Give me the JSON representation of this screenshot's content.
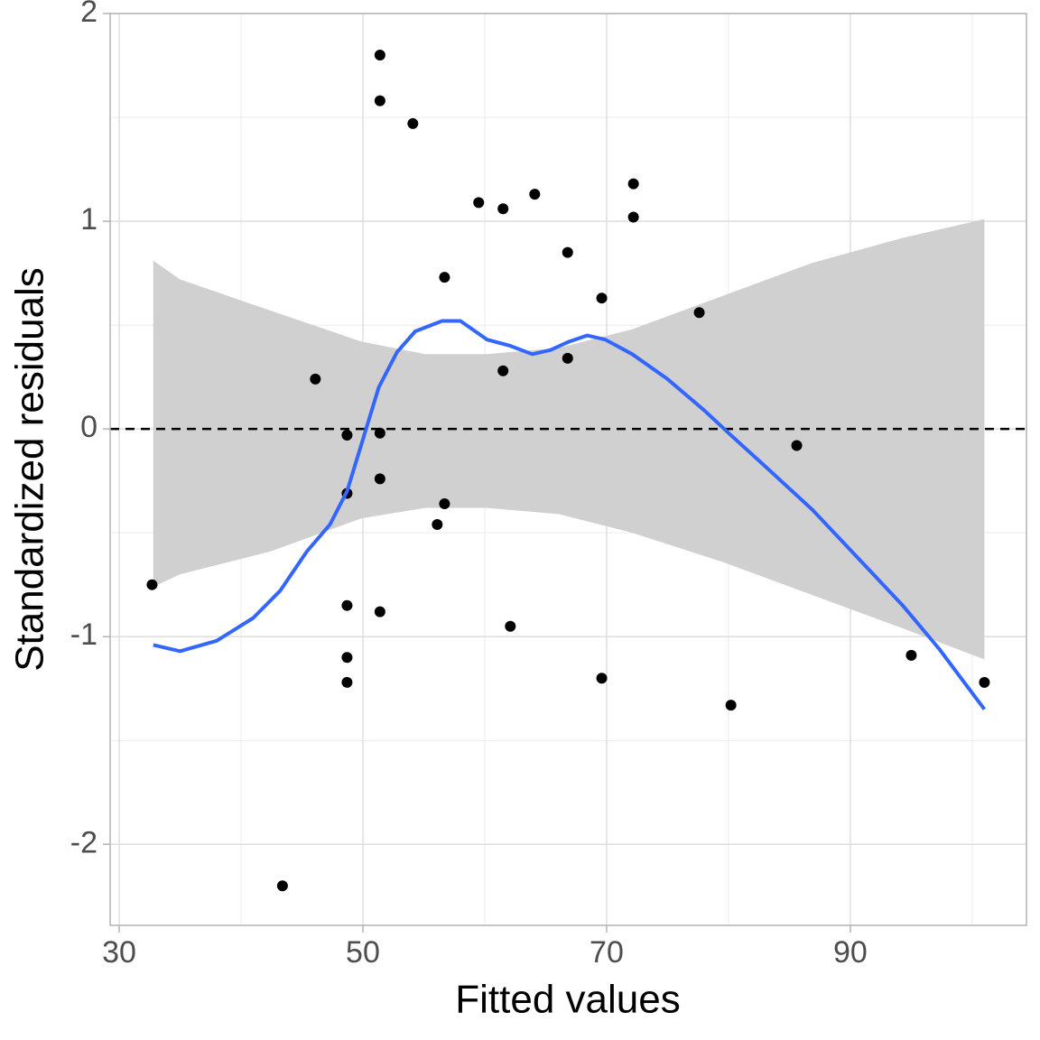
{
  "chart_data": {
    "type": "scatter",
    "xlabel": "Fitted values",
    "ylabel": "Standardized residuals",
    "x": [
      32.7,
      43.4,
      46.1,
      48.7,
      48.7,
      48.7,
      48.7,
      48.7,
      51.4,
      51.4,
      51.4,
      51.4,
      51.4,
      54.1,
      56.1,
      56.7,
      56.7,
      59.5,
      61.5,
      61.5,
      62.1,
      64.1,
      66.8,
      66.8,
      69.6,
      69.6,
      72.2,
      72.2,
      77.6,
      80.2,
      85.6,
      95.0,
      101.0
    ],
    "values": [
      -0.75,
      -2.2,
      0.24,
      -0.03,
      -0.31,
      -0.85,
      -1.1,
      -1.22,
      1.8,
      1.58,
      -0.02,
      -0.24,
      -0.88,
      1.47,
      -0.46,
      0.73,
      -0.36,
      1.09,
      1.06,
      0.28,
      -0.95,
      1.13,
      0.85,
      0.34,
      0.63,
      -1.2,
      1.18,
      1.02,
      0.56,
      -1.33,
      -0.08,
      -1.09,
      -1.22
    ],
    "color": "#000000",
    "smooth": {
      "color": "#3366ff",
      "x": [
        32.8,
        35.0,
        38.0,
        41.0,
        43.2,
        45.4,
        47.3,
        48.7,
        49.9,
        51.3,
        52.8,
        54.3,
        56.5,
        58.0,
        60.2,
        62.1,
        63.9,
        65.4,
        66.9,
        68.4,
        69.9,
        72.1,
        75.0,
        78.0,
        80.2,
        83.2,
        86.9,
        90.6,
        94.3,
        97.3,
        101.0
      ],
      "y": [
        -1.04,
        -1.07,
        -1.02,
        -0.91,
        -0.78,
        -0.59,
        -0.46,
        -0.3,
        -0.07,
        0.2,
        0.37,
        0.47,
        0.52,
        0.52,
        0.43,
        0.4,
        0.36,
        0.38,
        0.42,
        0.45,
        0.43,
        0.36,
        0.24,
        0.09,
        -0.03,
        -0.19,
        -0.39,
        -0.62,
        -0.85,
        -1.06,
        -1.35
      ]
    },
    "band": {
      "color": "#d0d0d0",
      "x": [
        32.8,
        35.0,
        42.4,
        49.9,
        55.1,
        60.2,
        66.1,
        72.1,
        79.5,
        86.9,
        94.3,
        101.0
      ],
      "ymax": [
        0.81,
        0.72,
        0.57,
        0.42,
        0.36,
        0.36,
        0.39,
        0.48,
        0.64,
        0.8,
        0.92,
        1.01
      ],
      "ymin": [
        -0.76,
        -0.7,
        -0.59,
        -0.43,
        -0.38,
        -0.38,
        -0.41,
        -0.5,
        -0.64,
        -0.8,
        -0.96,
        -1.11
      ]
    },
    "hline": 0,
    "xlim": [
      29.26,
      104.45
    ],
    "ylim": [
      -2.39,
      2
    ],
    "xticks": [
      30,
      50,
      70,
      90
    ],
    "yticks": [
      -2,
      -1,
      0,
      1,
      2
    ],
    "xminor": [
      40,
      60,
      80,
      100
    ],
    "yminor": [
      -1.5,
      -0.5,
      0.5,
      1.5
    ],
    "grid": true
  }
}
